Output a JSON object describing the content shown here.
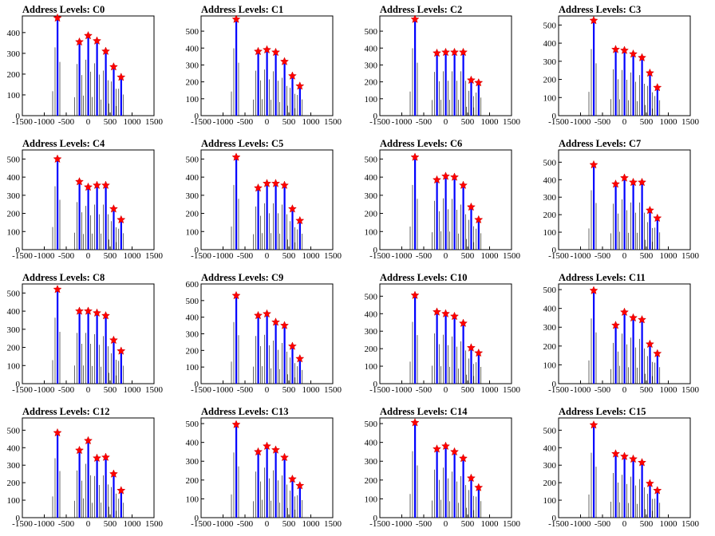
{
  "colors": {
    "bar": "#0000ff",
    "fine_bar": "#000000",
    "star": "#ff0000",
    "frame": "#000000",
    "background": "#ffffff"
  },
  "axes": {
    "x_ticks": [
      -1500,
      -1000,
      -500,
      0,
      500,
      1000,
      1500
    ],
    "x_tick_labels": [
      "-1500",
      "-1000",
      "-500",
      "0",
      "500",
      "1000",
      "1500"
    ],
    "xlim": [
      -1500,
      1500
    ]
  },
  "chart_data": [
    {
      "type": "bar",
      "title": "Address Levels: C0",
      "ylim": [
        0,
        480
      ],
      "y_ticks": [
        0,
        100,
        200,
        300,
        400
      ],
      "x": [
        -700,
        -200,
        0,
        200,
        400,
        580,
        750
      ],
      "values": [
        470,
        355,
        385,
        360,
        310,
        235,
        185
      ]
    },
    {
      "type": "bar",
      "title": "Address Levels: C1",
      "ylim": [
        0,
        590
      ],
      "y_ticks": [
        0,
        100,
        200,
        300,
        400,
        500
      ],
      "x": [
        -700,
        -200,
        0,
        200,
        400,
        580,
        750
      ],
      "values": [
        570,
        380,
        390,
        375,
        320,
        235,
        175
      ]
    },
    {
      "type": "bar",
      "title": "Address Levels: C2",
      "ylim": [
        0,
        590
      ],
      "y_ticks": [
        0,
        100,
        200,
        300,
        400,
        500
      ],
      "x": [
        -700,
        -200,
        0,
        200,
        400,
        580,
        750
      ],
      "values": [
        570,
        370,
        375,
        375,
        375,
        210,
        195
      ]
    },
    {
      "type": "bar",
      "title": "Address Levels: C3",
      "ylim": [
        0,
        550
      ],
      "y_ticks": [
        0,
        100,
        200,
        300,
        400,
        500
      ],
      "x": [
        -700,
        -200,
        0,
        200,
        400,
        580,
        750
      ],
      "values": [
        525,
        365,
        360,
        340,
        320,
        235,
        155
      ]
    },
    {
      "type": "bar",
      "title": "Address Levels: C4",
      "ylim": [
        0,
        550
      ],
      "y_ticks": [
        0,
        100,
        200,
        300,
        400,
        500
      ],
      "x": [
        -700,
        -200,
        0,
        200,
        400,
        580,
        750
      ],
      "values": [
        500,
        375,
        345,
        355,
        355,
        225,
        165
      ]
    },
    {
      "type": "bar",
      "title": "Address Levels: C5",
      "ylim": [
        0,
        550
      ],
      "y_ticks": [
        0,
        100,
        200,
        300,
        400,
        500
      ],
      "x": [
        -700,
        -200,
        0,
        200,
        400,
        580,
        750
      ],
      "values": [
        510,
        340,
        365,
        365,
        355,
        225,
        160
      ]
    },
    {
      "type": "bar",
      "title": "Address Levels: C6",
      "ylim": [
        0,
        550
      ],
      "y_ticks": [
        0,
        100,
        200,
        300,
        400,
        500
      ],
      "x": [
        -700,
        -200,
        0,
        200,
        400,
        580,
        750
      ],
      "values": [
        510,
        385,
        405,
        400,
        355,
        235,
        165
      ]
    },
    {
      "type": "bar",
      "title": "Address Levels: C7",
      "ylim": [
        0,
        570
      ],
      "y_ticks": [
        0,
        100,
        200,
        300,
        400,
        500
      ],
      "x": [
        -700,
        -200,
        0,
        200,
        400,
        580,
        750
      ],
      "values": [
        485,
        375,
        410,
        385,
        385,
        225,
        180
      ]
    },
    {
      "type": "bar",
      "title": "Address Levels: C8",
      "ylim": [
        0,
        550
      ],
      "y_ticks": [
        0,
        100,
        200,
        300,
        400,
        500
      ],
      "x": [
        -700,
        -200,
        0,
        200,
        400,
        580,
        750
      ],
      "values": [
        520,
        400,
        400,
        390,
        375,
        240,
        180
      ]
    },
    {
      "type": "bar",
      "title": "Address Levels: C9",
      "ylim": [
        0,
        600
      ],
      "y_ticks": [
        0,
        100,
        200,
        300,
        400,
        500,
        600
      ],
      "x": [
        -700,
        -200,
        0,
        200,
        400,
        580,
        750
      ],
      "values": [
        530,
        410,
        420,
        370,
        350,
        225,
        150
      ]
    },
    {
      "type": "bar",
      "title": "Address Levels: C10",
      "ylim": [
        0,
        570
      ],
      "y_ticks": [
        0,
        100,
        200,
        300,
        400,
        500
      ],
      "x": [
        -700,
        -200,
        0,
        200,
        400,
        580,
        750
      ],
      "values": [
        505,
        410,
        400,
        385,
        345,
        205,
        175
      ]
    },
    {
      "type": "bar",
      "title": "Address Levels: C11",
      "ylim": [
        0,
        530
      ],
      "y_ticks": [
        0,
        100,
        200,
        300,
        400,
        500
      ],
      "x": [
        -700,
        -200,
        0,
        200,
        400,
        580,
        750
      ],
      "values": [
        495,
        310,
        380,
        350,
        340,
        210,
        160
      ]
    },
    {
      "type": "bar",
      "title": "Address Levels: C12",
      "ylim": [
        0,
        570
      ],
      "y_ticks": [
        0,
        100,
        200,
        300,
        400,
        500
      ],
      "x": [
        -700,
        -200,
        0,
        200,
        400,
        580,
        750
      ],
      "values": [
        485,
        385,
        440,
        340,
        345,
        250,
        155
      ]
    },
    {
      "type": "bar",
      "title": "Address Levels: C13",
      "ylim": [
        0,
        530
      ],
      "y_ticks": [
        0,
        100,
        200,
        300,
        400,
        500
      ],
      "x": [
        -700,
        -200,
        0,
        200,
        400,
        580,
        750
      ],
      "values": [
        495,
        350,
        380,
        360,
        320,
        205,
        170
      ]
    },
    {
      "type": "bar",
      "title": "Address Levels: C14",
      "ylim": [
        0,
        530
      ],
      "y_ticks": [
        0,
        100,
        200,
        300,
        400,
        500
      ],
      "x": [
        -700,
        -200,
        0,
        200,
        400,
        580,
        750
      ],
      "values": [
        505,
        365,
        380,
        350,
        315,
        210,
        160
      ]
    },
    {
      "type": "bar",
      "title": "Address Levels: C15",
      "ylim": [
        0,
        570
      ],
      "y_ticks": [
        0,
        100,
        200,
        300,
        400,
        500
      ],
      "x": [
        -700,
        -200,
        0,
        200,
        400,
        580,
        750
      ],
      "values": [
        530,
        365,
        350,
        335,
        315,
        195,
        155
      ]
    }
  ]
}
